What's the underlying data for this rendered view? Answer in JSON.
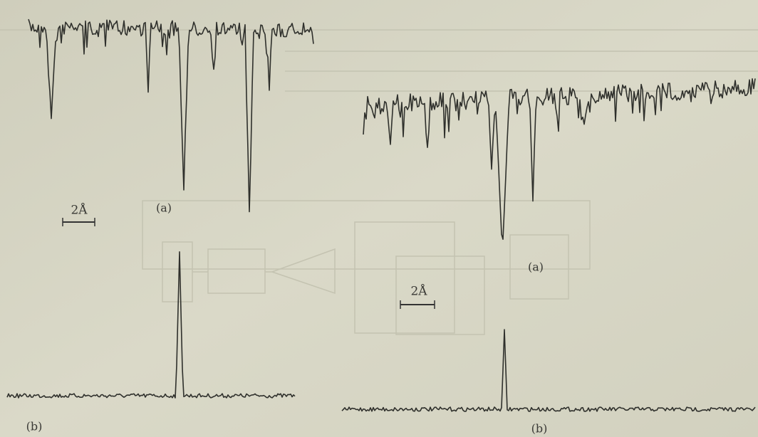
{
  "panels": [
    {
      "scale_label": "2Å",
      "label_a": "(a)",
      "label_b": "(b)"
    },
    {
      "scale_label": "2Å",
      "label_a": "(a)",
      "label_b": "(b)"
    }
  ]
}
